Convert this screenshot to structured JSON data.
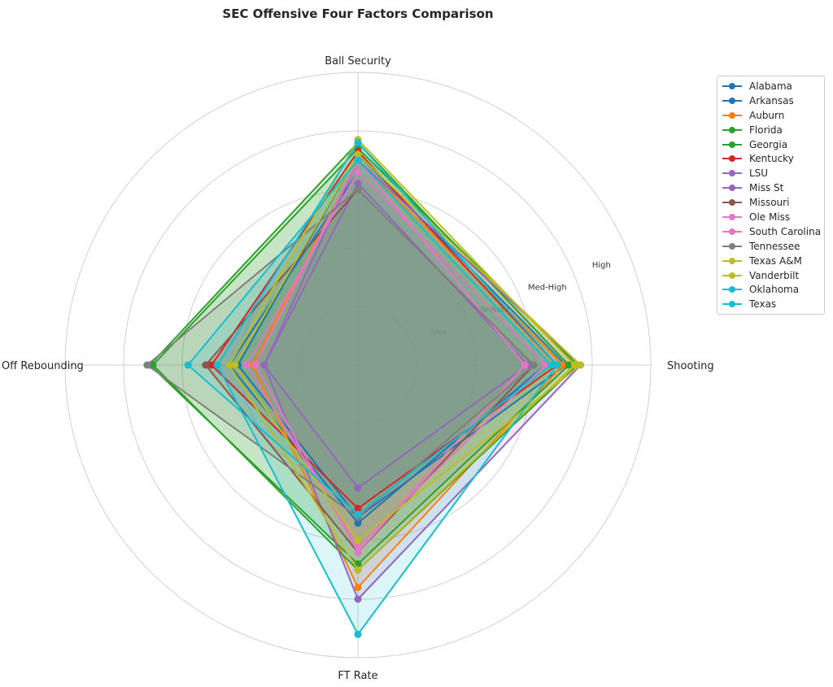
{
  "chart_data": {
    "type": "radar",
    "title": "SEC Offensive Four Factors Comparison",
    "axes": [
      "Shooting",
      "Ball Security",
      "Off Rebounding",
      "FT Rate"
    ],
    "rlim": [
      0,
      5
    ],
    "rings": [
      1,
      2,
      3,
      4,
      5
    ],
    "ring_labels": [
      {
        "r": 1.5,
        "label": "Low"
      },
      {
        "r": 2.5,
        "label": "Medium"
      },
      {
        "r": 3.5,
        "label": "Med-High"
      },
      {
        "r": 4.5,
        "label": "High"
      }
    ],
    "grid": true,
    "legend_position": "right",
    "series": [
      {
        "name": "Alabama",
        "color": "#1f77b4",
        "values": [
          3.55,
          3.6,
          2.05,
          2.6
        ]
      },
      {
        "name": "Arkansas",
        "color": "#1f77b4",
        "values": [
          3.2,
          3.3,
          2.2,
          2.7
        ]
      },
      {
        "name": "Auburn",
        "color": "#ff7f0e",
        "values": [
          3.5,
          3.5,
          1.8,
          3.8
        ]
      },
      {
        "name": "Florida",
        "color": "#2ca02c",
        "values": [
          3.75,
          3.7,
          3.5,
          3.5
        ]
      },
      {
        "name": "Georgia",
        "color": "#2ca02c",
        "values": [
          3.6,
          3.8,
          3.55,
          3.4
        ]
      },
      {
        "name": "Kentucky",
        "color": "#d62728",
        "values": [
          3.4,
          3.65,
          2.5,
          2.45
        ]
      },
      {
        "name": "LSU",
        "color": "#9467bd",
        "values": [
          2.9,
          3.1,
          1.6,
          2.1
        ]
      },
      {
        "name": "Miss St",
        "color": "#9467bd",
        "values": [
          3.8,
          3.5,
          1.6,
          4.0
        ]
      },
      {
        "name": "Missouri",
        "color": "#8c564b",
        "values": [
          3.0,
          3.0,
          2.6,
          3.2
        ]
      },
      {
        "name": "Ole Miss",
        "color": "#e377c2",
        "values": [
          2.85,
          3.5,
          1.75,
          3.2
        ]
      },
      {
        "name": "South Carolina",
        "color": "#e377c2",
        "values": [
          3.2,
          3.3,
          1.9,
          3.1
        ]
      },
      {
        "name": "Tennessee",
        "color": "#7f7f7f",
        "values": [
          3.0,
          3.0,
          3.6,
          2.6
        ]
      },
      {
        "name": "Texas A&M",
        "color": "#bcbd22",
        "values": [
          3.7,
          3.85,
          2.2,
          3.5
        ]
      },
      {
        "name": "Vanderbilt",
        "color": "#bcbd22",
        "values": [
          3.8,
          3.6,
          2.1,
          3.0
        ]
      },
      {
        "name": "Oklahoma",
        "color": "#17becf",
        "values": [
          3.3,
          3.5,
          2.9,
          2.55
        ]
      },
      {
        "name": "Texas",
        "color": "#17becf",
        "values": [
          3.4,
          3.8,
          2.4,
          4.6
        ]
      }
    ]
  }
}
